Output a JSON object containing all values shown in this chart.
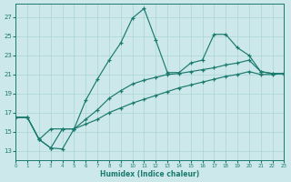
{
  "bg_color": "#cde8ea",
  "grid_color": "#aad4d4",
  "line_color": "#1a7a6e",
  "xlabel": "Humidex (Indice chaleur)",
  "xlim": [
    0,
    23
  ],
  "ylim": [
    12,
    28.4
  ],
  "yticks": [
    13,
    15,
    17,
    19,
    21,
    23,
    25,
    27
  ],
  "xticks": [
    0,
    1,
    2,
    3,
    4,
    5,
    6,
    7,
    8,
    9,
    10,
    11,
    12,
    13,
    14,
    15,
    16,
    17,
    18,
    19,
    20,
    21,
    22,
    23
  ],
  "s1x": [
    0,
    1,
    2,
    3,
    4,
    5,
    6,
    7,
    8,
    9,
    10,
    11,
    12,
    13,
    14,
    15,
    16,
    17,
    18,
    19,
    20,
    21,
    22,
    23
  ],
  "s1y": [
    16.5,
    16.5,
    14.2,
    13.3,
    13.2,
    15.3,
    18.3,
    20.5,
    22.5,
    24.3,
    26.9,
    27.9,
    24.6,
    21.2,
    21.2,
    22.2,
    22.5,
    25.2,
    25.2,
    23.8,
    23.0,
    21.3,
    21.1,
    21.1
  ],
  "s2x": [
    0,
    1,
    2,
    3,
    4,
    5,
    6,
    7,
    8,
    9,
    10,
    11,
    12,
    13,
    14,
    15,
    16,
    17,
    18,
    19,
    20,
    21,
    22,
    23
  ],
  "s2y": [
    16.5,
    16.5,
    14.2,
    13.3,
    15.3,
    15.3,
    16.3,
    17.3,
    18.5,
    19.3,
    20.0,
    20.4,
    20.7,
    21.0,
    21.1,
    21.3,
    21.5,
    21.7,
    22.0,
    22.2,
    22.5,
    21.3,
    21.1,
    21.1
  ],
  "s3x": [
    0,
    1,
    2,
    3,
    4,
    5,
    6,
    7,
    8,
    9,
    10,
    11,
    12,
    13,
    14,
    15,
    16,
    17,
    18,
    19,
    20,
    21,
    22,
    23
  ],
  "s3y": [
    16.5,
    16.5,
    14.2,
    15.3,
    15.3,
    15.3,
    15.8,
    16.3,
    17.0,
    17.5,
    18.0,
    18.4,
    18.8,
    19.2,
    19.6,
    19.9,
    20.2,
    20.5,
    20.8,
    21.0,
    21.3,
    21.0,
    21.0,
    21.1
  ]
}
